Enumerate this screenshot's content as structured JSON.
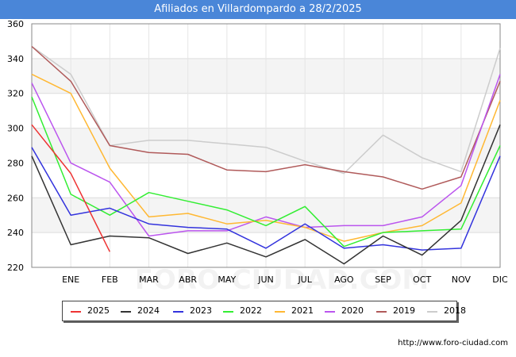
{
  "title": "Afiliados en Villardompardo a 28/2/2025",
  "watermark": "FORO-CIUDAD.COM",
  "source": "http://www.foro-ciudad.com",
  "chart_data": {
    "type": "line",
    "categories": [
      "",
      "ENE",
      "FEB",
      "MAR",
      "ABR",
      "MAY",
      "JUN",
      "JUL",
      "AGO",
      "SEP",
      "OCT",
      "NOV",
      "DIC"
    ],
    "ylim": [
      220,
      360
    ],
    "yticks": [
      220,
      240,
      260,
      280,
      300,
      320,
      340,
      360
    ],
    "grid": true,
    "legend_position": "bottom",
    "series": [
      {
        "name": "2025",
        "color": "#ee3333",
        "values": [
          302,
          274,
          229,
          null,
          null,
          null,
          null,
          null,
          null,
          null,
          null,
          null,
          null
        ]
      },
      {
        "name": "2024",
        "color": "#333333",
        "values": [
          284,
          233,
          238,
          237,
          228,
          234,
          226,
          236,
          222,
          238,
          227,
          247,
          302
        ]
      },
      {
        "name": "2023",
        "color": "#3333dd",
        "values": [
          289,
          250,
          254,
          245,
          243,
          242,
          231,
          245,
          231,
          233,
          230,
          231,
          284
        ]
      },
      {
        "name": "2022",
        "color": "#33ee33",
        "values": [
          318,
          262,
          250,
          263,
          258,
          253,
          244,
          255,
          232,
          240,
          241,
          242,
          290
        ]
      },
      {
        "name": "2021",
        "color": "#ffb833",
        "values": [
          331,
          320,
          277,
          249,
          251,
          245,
          247,
          243,
          235,
          240,
          244,
          257,
          316
        ]
      },
      {
        "name": "2020",
        "color": "#bb55ee",
        "values": [
          326,
          280,
          269,
          238,
          241,
          241,
          249,
          243,
          244,
          244,
          249,
          267,
          331
        ]
      },
      {
        "name": "2019",
        "color": "#b05a5a",
        "values": [
          347,
          327,
          290,
          286,
          285,
          276,
          275,
          279,
          275,
          272,
          265,
          272,
          327
        ]
      },
      {
        "name": "2018",
        "color": "#cccccc",
        "values": [
          347,
          331,
          290,
          293,
          293,
          291,
          289,
          281,
          274,
          296,
          283,
          275,
          346
        ]
      }
    ]
  }
}
